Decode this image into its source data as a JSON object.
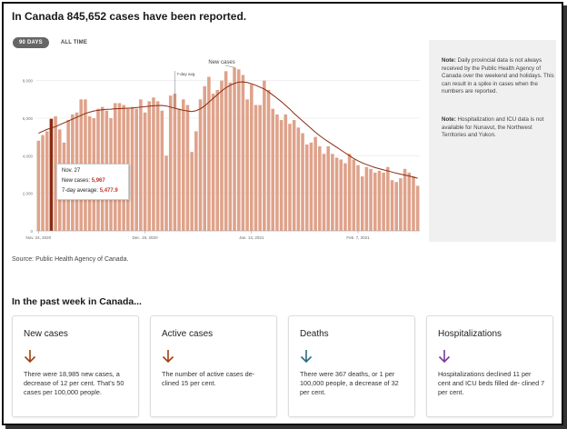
{
  "headline": "In Canada 845,652 cases have been reported.",
  "tabs": [
    {
      "label": "90 DAYS",
      "active": true
    },
    {
      "label": "ALL TIME",
      "active": false
    }
  ],
  "chart_data": {
    "type": "bar",
    "y_ticks": [
      "8,000",
      "6,000",
      "4,000",
      "2,000",
      "0"
    ],
    "ylim": [
      0,
      9000
    ],
    "x_tick_labels": [
      "Nov. 24, 2020",
      "Dec. 19, 2020",
      "Jan. 13, 2021",
      "Feb. 7, 2021"
    ],
    "series": [
      {
        "name": "New cases",
        "color": "#dfa28a",
        "highlight_color": "#8b2a10",
        "values": [
          4800,
          5100,
          5300,
          5967,
          6100,
          5400,
          4700,
          5900,
          6200,
          6300,
          7000,
          7000,
          6100,
          6000,
          6500,
          6600,
          6400,
          6000,
          6800,
          6800,
          6700,
          6500,
          6600,
          6500,
          7000,
          6300,
          6900,
          7100,
          6900,
          6400,
          4000,
          7200,
          7300,
          6500,
          7000,
          6700,
          4200,
          5300,
          7000,
          7700,
          8200,
          7300,
          7500,
          8000,
          8500,
          7900,
          8700,
          8600,
          8300,
          7000,
          7800,
          6700,
          6700,
          8000,
          7500,
          6500,
          6200,
          5900,
          6200,
          5700,
          5900,
          5500,
          5200,
          4600,
          4700,
          5000,
          4500,
          4100,
          4500,
          4100,
          3900,
          3800,
          3600,
          4100,
          3800,
          3500,
          2900,
          3400,
          3300,
          3100,
          3200,
          3100,
          3400,
          2700,
          2600,
          2800,
          3300,
          3100,
          2900,
          2400
        ]
      },
      {
        "name": "7-day avg",
        "color": "#8b2a10",
        "values": [
          5200,
          5300,
          5400,
          5478,
          5550,
          5650,
          5750,
          5850,
          5950,
          6050,
          6150,
          6250,
          6320,
          6380,
          6420,
          6450,
          6470,
          6480,
          6500,
          6510,
          6520,
          6530,
          6540,
          6560,
          6590,
          6610,
          6640,
          6660,
          6670,
          6680,
          6650,
          6590,
          6530,
          6470,
          6420,
          6380,
          6350,
          6400,
          6500,
          6650,
          6850,
          7050,
          7250,
          7450,
          7620,
          7750,
          7850,
          7920,
          7930,
          7900,
          7830,
          7750,
          7650,
          7550,
          7400,
          7230,
          7060,
          6880,
          6680,
          6480,
          6250,
          6050,
          5850,
          5650,
          5450,
          5250,
          5070,
          4900,
          4750,
          4600,
          4450,
          4300,
          4150,
          4000,
          3850,
          3730,
          3620,
          3530,
          3450,
          3370,
          3310,
          3250,
          3190,
          3130,
          3070,
          3020,
          2970,
          2920,
          2860,
          2800
        ]
      }
    ],
    "annotations": {
      "new_cases": "New cases",
      "avg": "7-day avg"
    }
  },
  "tooltip": {
    "date": "Nov. 27",
    "new_label": "New cases:",
    "new_value": "5,967",
    "avg_label": "7-day average:",
    "avg_value": "5,477.9"
  },
  "source": "Source: Public Health Agency of Canada.",
  "notes": [
    {
      "bold": "Note:",
      "text": " Daily provincial data is not always received by the Public Health Agency of Canada over the weekend and holidays. This can result in a spike in cases when the numbers are reported."
    },
    {
      "bold": "Note:",
      "text": " Hospitalization and ICU data is not available for Nunavut, the Northwest Territories and Yukon."
    }
  ],
  "section_title": "In the past week in Canada...",
  "cards": [
    {
      "title": "New cases",
      "arrow": "arrow-down-icon",
      "arrow_color": "#a04010",
      "text": "There were 18,985 new cases, a decrease of 12 per cent. That's 50 cases per 100,000 people."
    },
    {
      "title": "Active cases",
      "arrow": "arrow-down-icon",
      "arrow_color": "#a04010",
      "text": "The number of active cases de- clined 15 per cent."
    },
    {
      "title": "Deaths",
      "arrow": "arrow-down-icon",
      "arrow_color": "#2a6a80",
      "text": "There were 367 deaths, or 1 per 100,000 people, a decrease of 32 per cent."
    },
    {
      "title": "Hospitalizations",
      "arrow": "arrow-down-icon",
      "arrow_color": "#7a3a9a",
      "text": "Hospitalizations declined 11 per cent and ICU beds filled de- clined 7 per cent."
    }
  ]
}
